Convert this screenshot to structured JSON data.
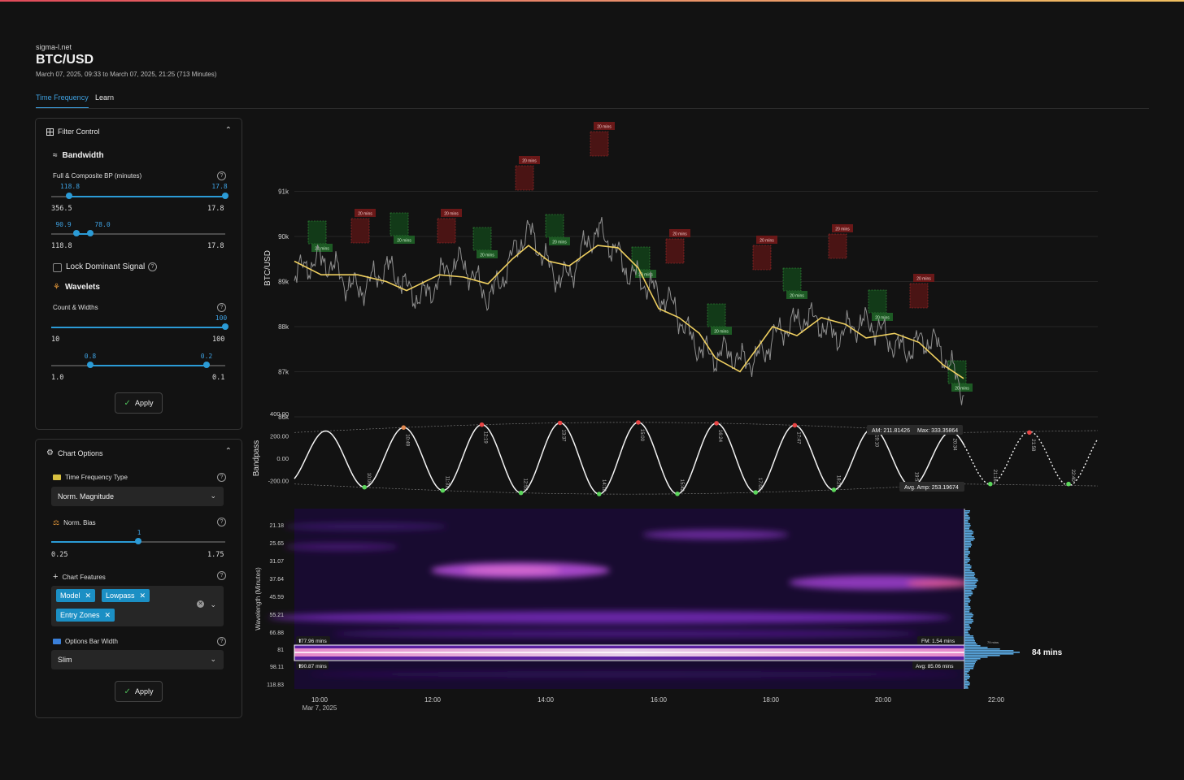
{
  "site": "sigma-l.net",
  "title": "BTC/USD",
  "subtitle": "March 07, 2025, 09:33 to March 07, 2025, 21:25 (713 Minutes)",
  "tabs": [
    "Time Frequency",
    "Learn"
  ],
  "filter": {
    "header": "Filter Control",
    "bandwidth_title": "Bandwidth",
    "bp_label": "Full & Composite BP (minutes)",
    "s1": {
      "lo": "118.8",
      "hi": "17.8",
      "min": "356.5",
      "max": "17.8"
    },
    "s2": {
      "lo": "90.9",
      "hi": "78.0",
      "min": "118.8",
      "max": "17.8"
    },
    "lock_label": "Lock Dominant Signal",
    "wavelets_title": "Wavelets",
    "count_label": "Count & Widths",
    "s3": {
      "hi": "100",
      "min": "10",
      "max": "100"
    },
    "s4": {
      "lo": "0.8",
      "hi": "0.2",
      "min": "1.0",
      "max": "0.1"
    },
    "apply": "Apply"
  },
  "options": {
    "header": "Chart Options",
    "tf_type_label": "Time Frequency Type",
    "tf_type_value": "Norm. Magnitude",
    "bias_label": "Norm. Bias",
    "bias": {
      "val": "1",
      "min": "0.25",
      "max": "1.75"
    },
    "features_label": "Chart Features",
    "chips": [
      "Model",
      "Lowpass",
      "Entry Zones"
    ],
    "bar_width_label": "Options Bar Width",
    "bar_width_value": "Slim",
    "apply": "Apply"
  },
  "chart_data": [
    {
      "type": "line",
      "ylabel": "BTC/USD",
      "yticks": [
        "91k",
        "90k",
        "89k",
        "88k",
        "87k",
        "86k"
      ],
      "peak_labels": [
        "20 mins",
        "20 mins",
        "20 mins",
        "20 mins",
        "20 mins",
        "20 mins",
        "20 mins",
        "20 mins",
        "20 mins"
      ],
      "trough_labels": [
        "20 mins",
        "20 mins",
        "20 mins",
        "20 mins",
        "20 mins",
        "20 mins",
        "20 mins",
        "20 mins",
        "20 mins",
        "19 mins"
      ],
      "colors": {
        "price": "#8a8a8a",
        "lowpass": "#f0d060",
        "peak_zone": "#7a2020",
        "trough_zone": "#1d5a24"
      }
    },
    {
      "type": "line",
      "ylabel": "Bandpass",
      "yticks": [
        "400.00",
        "200.00",
        "0.00",
        "-200.00"
      ],
      "peak_times": [
        "10:49",
        "12:19",
        "13:37",
        "15:00",
        "16:24",
        "17:47",
        "19:10",
        "20:34",
        "21:58",
        "23:21"
      ],
      "trough_times": [
        "10:06",
        "11:31",
        "12:55",
        "14:18",
        "15:42",
        "17:05",
        "18:29",
        "19:52",
        "21:16",
        "22:40"
      ],
      "annotations": {
        "am": "AM: 211.81426",
        "max": "Max: 333.35864",
        "avg_amp": "Avg. Amp: 253.19674"
      },
      "colors": {
        "wave": "#ffffff",
        "peak": "#e84545",
        "trough": "#5cd65c"
      }
    },
    {
      "type": "heatmap",
      "ylabel": "Wavelength (Minutes)",
      "yticks": [
        "21.18",
        "25.65",
        "31.07",
        "37.64",
        "45.59",
        "55.21",
        "66.88",
        "81",
        "98.11",
        "118.83"
      ],
      "xticks": [
        "10:00",
        "12:00",
        "14:00",
        "16:00",
        "18:00",
        "20:00",
        "22:00"
      ],
      "xsub": "Mar 7, 2025",
      "band_labels": {
        "upper": "77.96 mins",
        "lower": "90.87 mins",
        "fm": "FM: 1.54 mins",
        "avg": "Avg: 85.06 mins"
      },
      "dominant": "84 mins",
      "hist_note": "79 mins",
      "colors": {
        "bg": "#180b30",
        "band": "#c060ff",
        "core": "#ffd0e0"
      }
    }
  ]
}
